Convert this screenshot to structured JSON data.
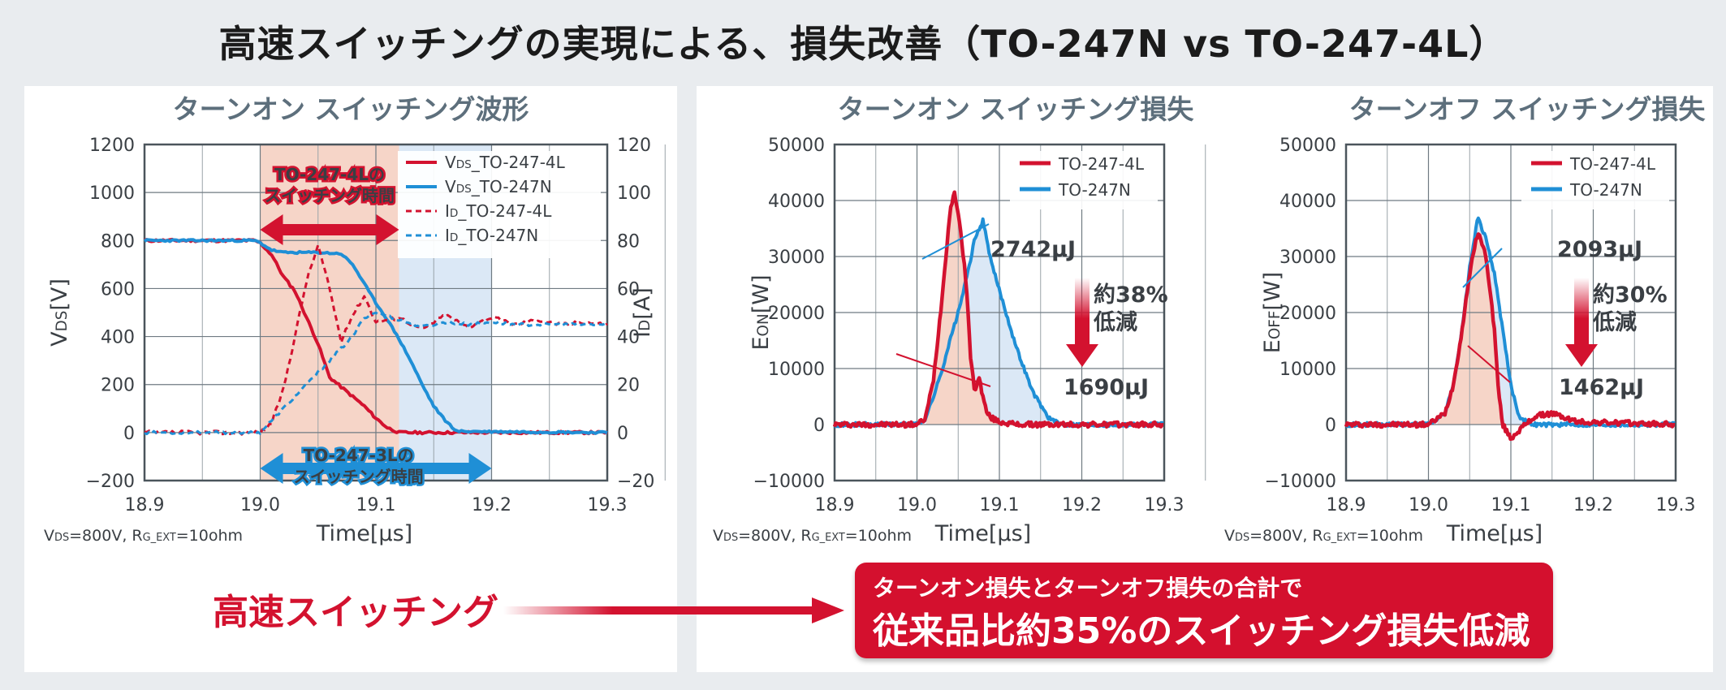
{
  "title": "高速スイッチングの実現による、損失改善（TO-247N vs TO-247-4L）",
  "colors": {
    "red": "#d3122f",
    "blue": "#1f8fd6",
    "red_fill": "#f6d5c8",
    "blue_fill": "#dbe8f6",
    "title_gray": "#5d6f7c"
  },
  "chart_data": [
    {
      "type": "line",
      "title": "ターンオン スイッチング波形",
      "xlabel": "Time[µs]",
      "ylabel_left": "VDS[V]",
      "ylabel_right": "ID[A]",
      "xlim": [
        18.9,
        19.3
      ],
      "ylim_left": [
        -200,
        1200
      ],
      "ylim_right": [
        -20,
        120
      ],
      "x_ticks": [
        "18.9",
        "19.0",
        "19.1",
        "19.2",
        "19.3"
      ],
      "y_ticks_left": [
        "1200",
        "1000",
        "800",
        "600",
        "400",
        "200",
        "0",
        "−200"
      ],
      "y_ticks_right": [
        "120",
        "100",
        "80",
        "60",
        "40",
        "20",
        "0",
        "−20"
      ],
      "legend": [
        {
          "prefix": "V",
          "sub": "DS",
          "suffix": "_TO-247-4L",
          "color": "#d3122f",
          "dash": false
        },
        {
          "prefix": "V",
          "sub": "DS",
          "suffix": "_TO-247N",
          "color": "#1f8fd6",
          "dash": false
        },
        {
          "prefix": "I",
          "sub": "D",
          "suffix": "_TO-247-4L",
          "color": "#d3122f",
          "dash": true
        },
        {
          "prefix": "I",
          "sub": "D",
          "suffix": "_TO-247N",
          "color": "#1f8fd6",
          "dash": true
        }
      ],
      "series": [
        {
          "name": "VDS_TO-247-4L",
          "axis": "left",
          "x": [
            18.9,
            18.995,
            19.0,
            19.01,
            19.02,
            19.03,
            19.04,
            19.05,
            19.06,
            19.07,
            19.08,
            19.09,
            19.1,
            19.11,
            19.12,
            19.3
          ],
          "values": [
            800,
            800,
            790,
            740,
            650,
            590,
            480,
            370,
            230,
            190,
            150,
            110,
            60,
            20,
            0,
            0
          ]
        },
        {
          "name": "VDS_TO-247N",
          "axis": "left",
          "x": [
            18.9,
            18.995,
            19.0,
            19.01,
            19.02,
            19.05,
            19.07,
            19.08,
            19.09,
            19.1,
            19.11,
            19.12,
            19.13,
            19.14,
            19.15,
            19.16,
            19.17,
            19.3
          ],
          "values": [
            800,
            800,
            790,
            760,
            750,
            750,
            745,
            700,
            620,
            540,
            470,
            390,
            300,
            200,
            110,
            50,
            5,
            0
          ]
        },
        {
          "name": "ID_TO-247-4L",
          "axis": "right",
          "x": [
            18.9,
            19.0,
            19.01,
            19.02,
            19.03,
            19.04,
            19.05,
            19.06,
            19.07,
            19.08,
            19.09,
            19.1,
            19.12,
            19.14,
            19.16,
            19.18,
            19.2,
            19.22,
            19.24,
            19.26,
            19.28,
            19.3
          ],
          "values": [
            0,
            0,
            4,
            18,
            40,
            63,
            78,
            60,
            38,
            49,
            57,
            46,
            48,
            43,
            49,
            44,
            48,
            45,
            47,
            45,
            46,
            45
          ]
        },
        {
          "name": "ID_TO-247N",
          "axis": "right",
          "x": [
            18.9,
            19.0,
            19.02,
            19.04,
            19.06,
            19.08,
            19.09,
            19.1,
            19.12,
            19.14,
            19.16,
            19.18,
            19.2,
            19.22,
            19.24,
            19.26,
            19.28,
            19.3
          ],
          "values": [
            0,
            0,
            10,
            20,
            30,
            40,
            48,
            50,
            47,
            44,
            46,
            45,
            46,
            45,
            45,
            45,
            45,
            45
          ]
        }
      ],
      "annotations": [
        {
          "text": [
            "TO-247-4Lの",
            "スイッチング時間"
          ],
          "color": "#d3122f",
          "x_range": [
            19.0,
            19.12
          ]
        },
        {
          "text": [
            "TO-247-3Lの",
            "スイッチング時間"
          ],
          "color": "#1f8fd6",
          "x_range": [
            19.0,
            19.2
          ]
        }
      ],
      "condition": {
        "v": "V",
        "ds": "DS",
        "mid": "=800V, R",
        "gext": "G_EXT",
        "end": "=10ohm"
      }
    },
    {
      "type": "line",
      "title": "ターンオン スイッチング損失",
      "xlabel": "Time[µs]",
      "ylabel": "EON[W]",
      "ylabel_main": "E",
      "ylabel_sub": "ON",
      "ylabel_tail": "[W]",
      "xlim": [
        18.9,
        19.3
      ],
      "ylim": [
        -10000,
        50000
      ],
      "x_ticks": [
        "18.9",
        "19.0",
        "19.1",
        "19.2",
        "19.3"
      ],
      "y_ticks": [
        "50000",
        "40000",
        "30000",
        "20000",
        "10000",
        "0",
        "−10000"
      ],
      "legend": [
        "TO-247-4L",
        "TO-247N"
      ],
      "series": [
        {
          "name": "TO-247-4L",
          "x": [
            18.9,
            19.0,
            19.01,
            19.02,
            19.03,
            19.04,
            19.045,
            19.05,
            19.06,
            19.065,
            19.07,
            19.075,
            19.08,
            19.085,
            19.09,
            19.1,
            19.12,
            19.3
          ],
          "values": [
            0,
            0,
            1000,
            8000,
            22000,
            38000,
            41500,
            38000,
            25000,
            12000,
            6000,
            8500,
            5000,
            2000,
            1200,
            500,
            0,
            0
          ]
        },
        {
          "name": "TO-247N",
          "x": [
            18.9,
            19.0,
            19.01,
            19.02,
            19.03,
            19.04,
            19.05,
            19.06,
            19.07,
            19.08,
            19.09,
            19.1,
            19.11,
            19.12,
            19.13,
            19.14,
            19.15,
            19.16,
            19.17,
            19.18,
            19.3
          ],
          "values": [
            0,
            0,
            1000,
            5000,
            9500,
            15000,
            20000,
            26000,
            33000,
            36500,
            29000,
            24000,
            19000,
            14000,
            10000,
            6000,
            3500,
            1200,
            300,
            0,
            0
          ]
        }
      ],
      "values_labels": {
        "blue": "2742µJ",
        "red": "1690µJ",
        "pct": "約38%",
        "reduce": "低減"
      },
      "condition": {
        "v": "V",
        "ds": "DS",
        "mid": "=800V, R",
        "gext": "G_EXT",
        "end": "=10ohm"
      }
    },
    {
      "type": "line",
      "title": "ターンオフ スイッチング損失",
      "xlabel": "Time[µs]",
      "ylabel": "EOFF[W]",
      "ylabel_main": "E",
      "ylabel_sub": "OFF",
      "ylabel_tail": "[W]",
      "xlim": [
        18.9,
        19.3
      ],
      "ylim": [
        -10000,
        50000
      ],
      "x_ticks": [
        "18.9",
        "19.0",
        "19.1",
        "19.2",
        "19.3"
      ],
      "y_ticks": [
        "50000",
        "40000",
        "30000",
        "20000",
        "10000",
        "0",
        "−10000"
      ],
      "legend": [
        "TO-247-4L",
        "TO-247N"
      ],
      "series": [
        {
          "name": "TO-247-4L",
          "x": [
            18.9,
            19.0,
            19.02,
            19.03,
            19.04,
            19.05,
            19.06,
            19.07,
            19.08,
            19.085,
            19.09,
            19.1,
            19.11,
            19.13,
            19.15,
            19.18,
            19.3
          ],
          "values": [
            0,
            0,
            2000,
            7000,
            16000,
            27000,
            34500,
            30000,
            17000,
            6000,
            0,
            -2500,
            -1000,
            1500,
            2000,
            500,
            0
          ]
        },
        {
          "name": "TO-247N",
          "x": [
            18.9,
            19.0,
            19.02,
            19.03,
            19.04,
            19.05,
            19.06,
            19.07,
            19.08,
            19.09,
            19.1,
            19.11,
            19.12,
            19.13,
            19.15,
            19.3
          ],
          "values": [
            0,
            0,
            2000,
            7000,
            16000,
            28000,
            37000,
            33000,
            27000,
            17000,
            7000,
            1500,
            500,
            0,
            0,
            0
          ]
        }
      ],
      "values_labels": {
        "blue": "2093µJ",
        "red": "1462µJ",
        "pct": "約30%",
        "reduce": "低減"
      },
      "condition": {
        "v": "V",
        "ds": "DS",
        "mid": "=800V, R",
        "gext": "G_EXT",
        "end": "=10ohm"
      }
    }
  ],
  "footer": {
    "highspeed": "高速スイッチング",
    "result_line1": "ターンオン損失とターンオフ損失の合計で",
    "result_line2": "従来品比約35%のスイッチング損失低減"
  }
}
